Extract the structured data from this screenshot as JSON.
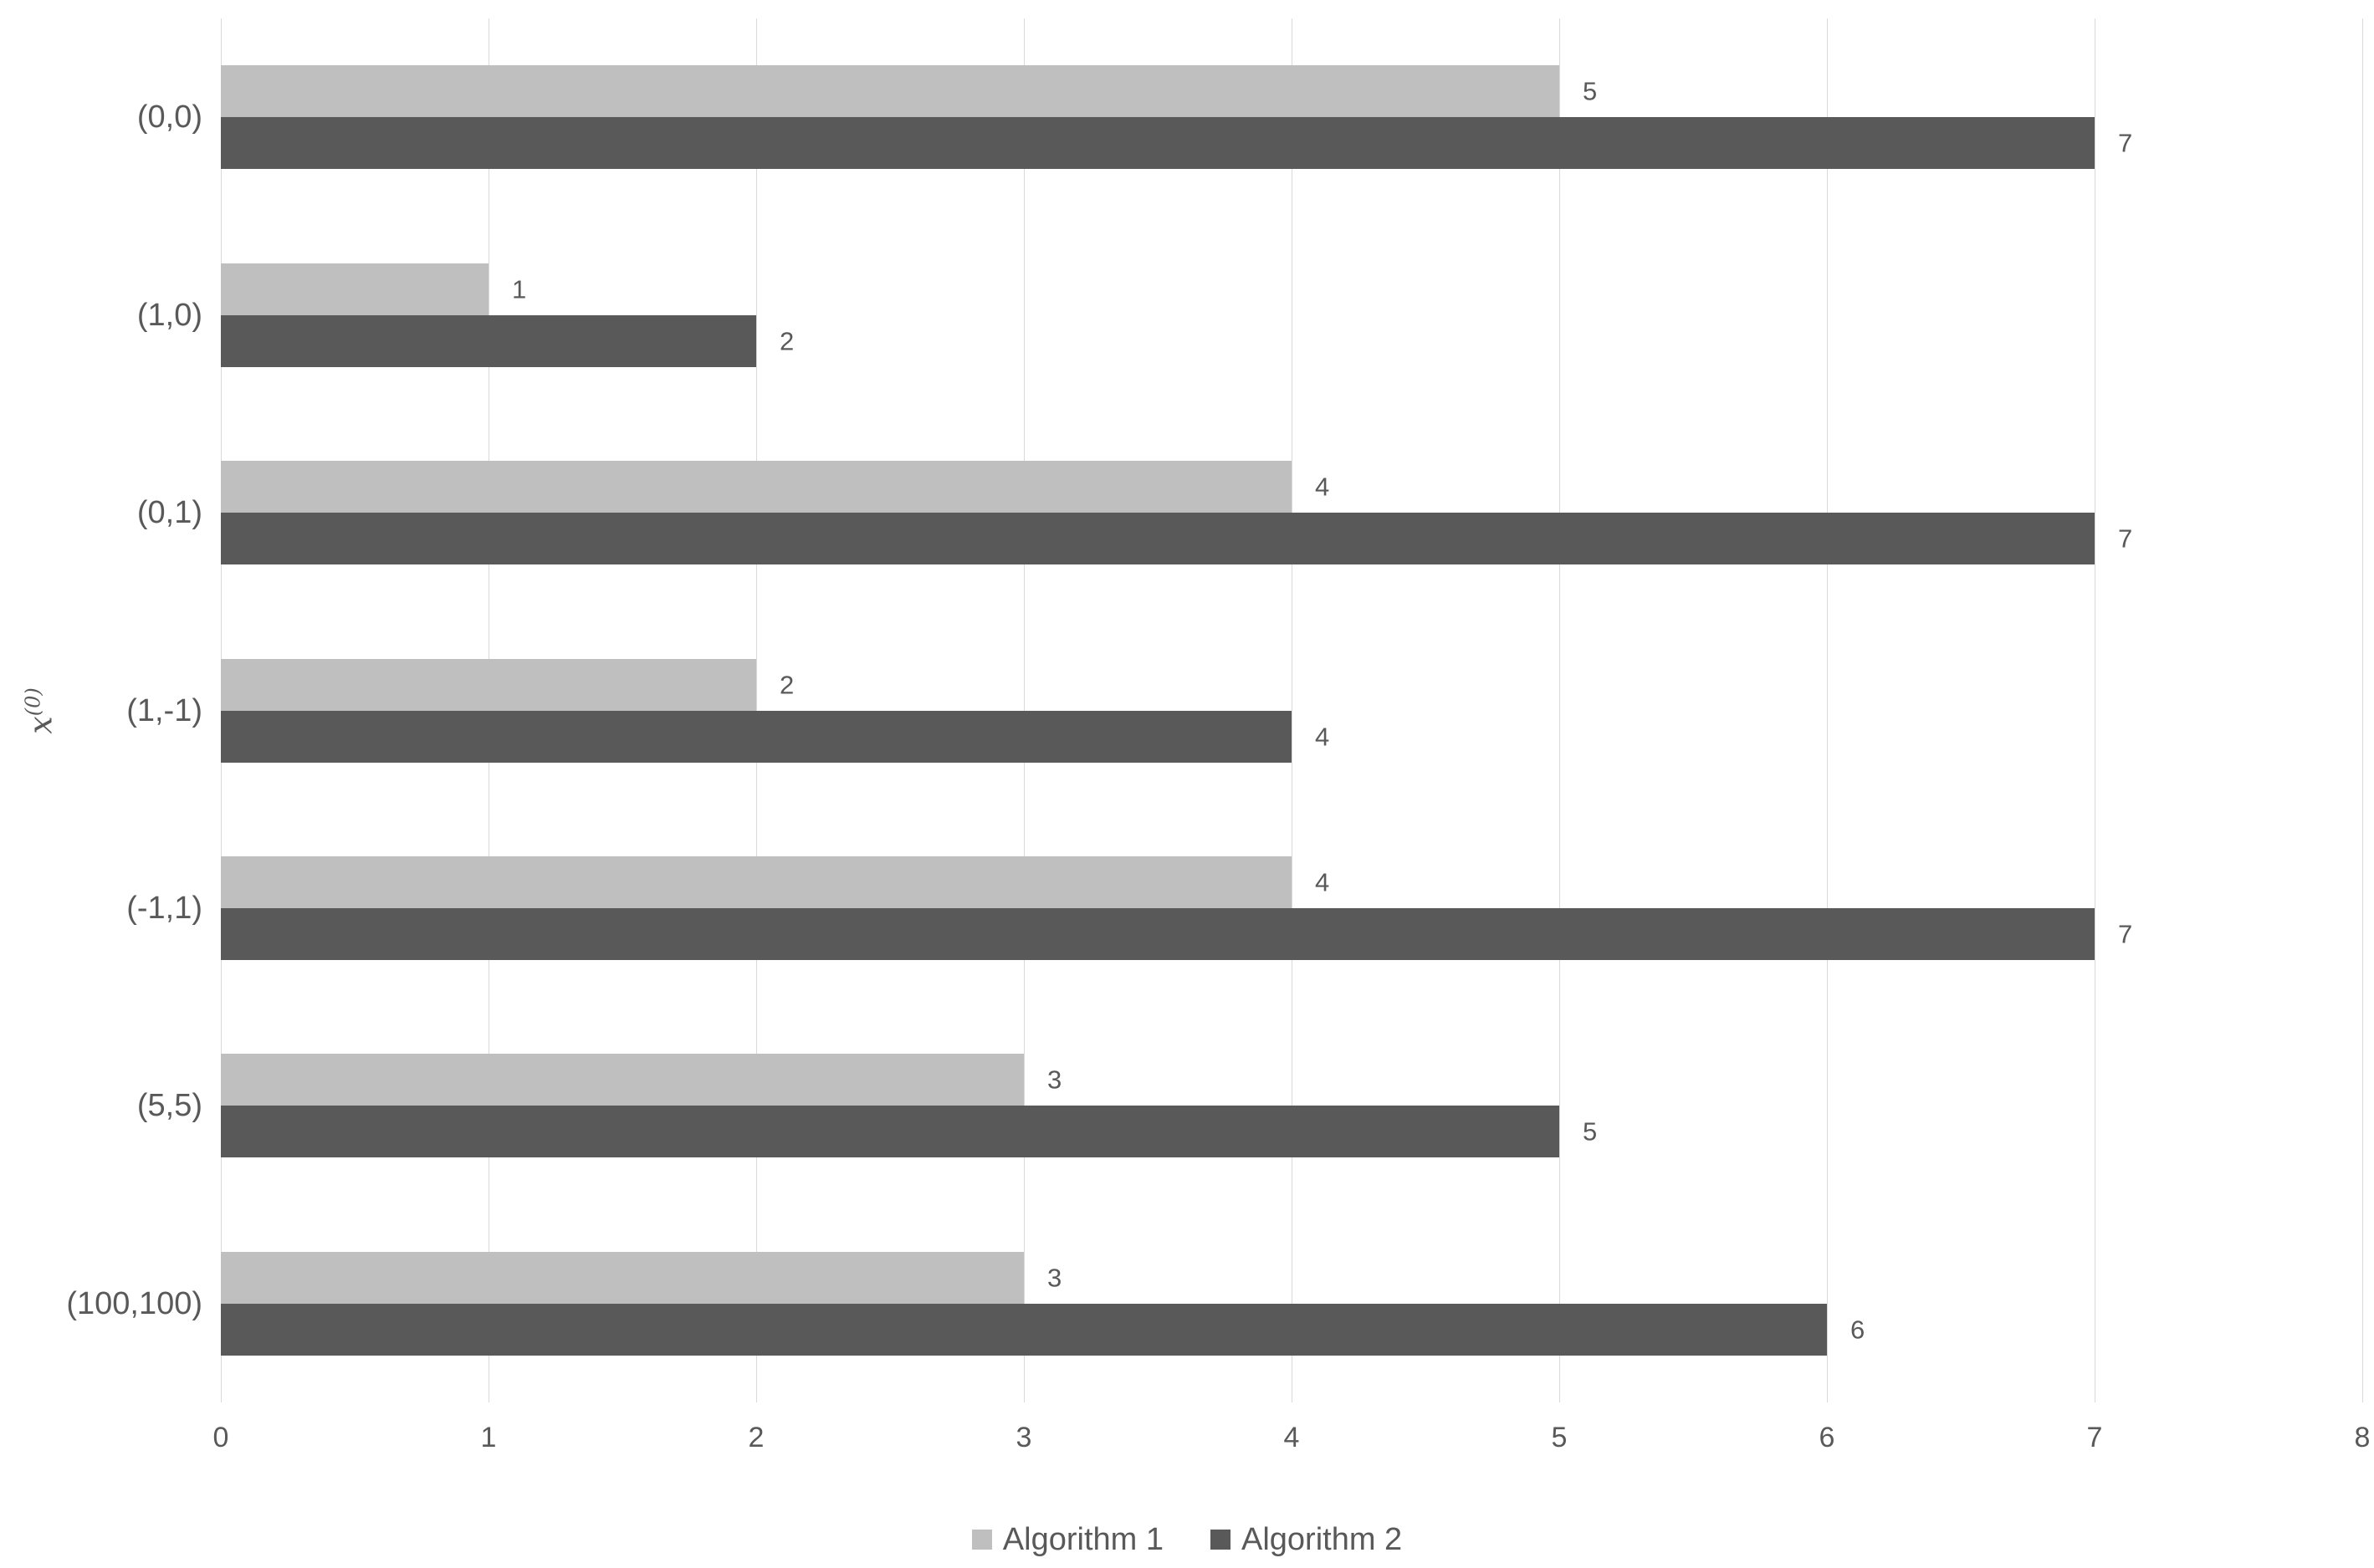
{
  "chart_data": {
    "type": "bar",
    "orientation": "horizontal",
    "title": "",
    "xlabel": "",
    "ylabel": "x^(0)",
    "ylabel_base": "x",
    "ylabel_superscript": "(0)",
    "categories": [
      "(0,0)",
      "(1,0)",
      "(0,1)",
      "(1,-1)",
      "(-1,1)",
      "(5,5)",
      "(100,100)"
    ],
    "series": [
      {
        "name": "Algorithm 1",
        "color": "#bfbfbf",
        "values": [
          5,
          1,
          4,
          2,
          4,
          3,
          3
        ]
      },
      {
        "name": "Algorithm 2",
        "color": "#595959",
        "values": [
          7,
          2,
          7,
          4,
          7,
          5,
          6
        ]
      }
    ],
    "data_labels": true,
    "xlim": [
      0,
      8
    ],
    "xticks": [
      "0",
      "1",
      "2",
      "3",
      "4",
      "5",
      "6",
      "7",
      "8"
    ],
    "grid": "vertical",
    "legend_position": "bottom",
    "legend": [
      "Algorithm 1",
      "Algorithm 2"
    ],
    "theme": {
      "background": "#ffffff",
      "gridline_color": "#d9d9d9",
      "text_color": "#595959"
    }
  }
}
